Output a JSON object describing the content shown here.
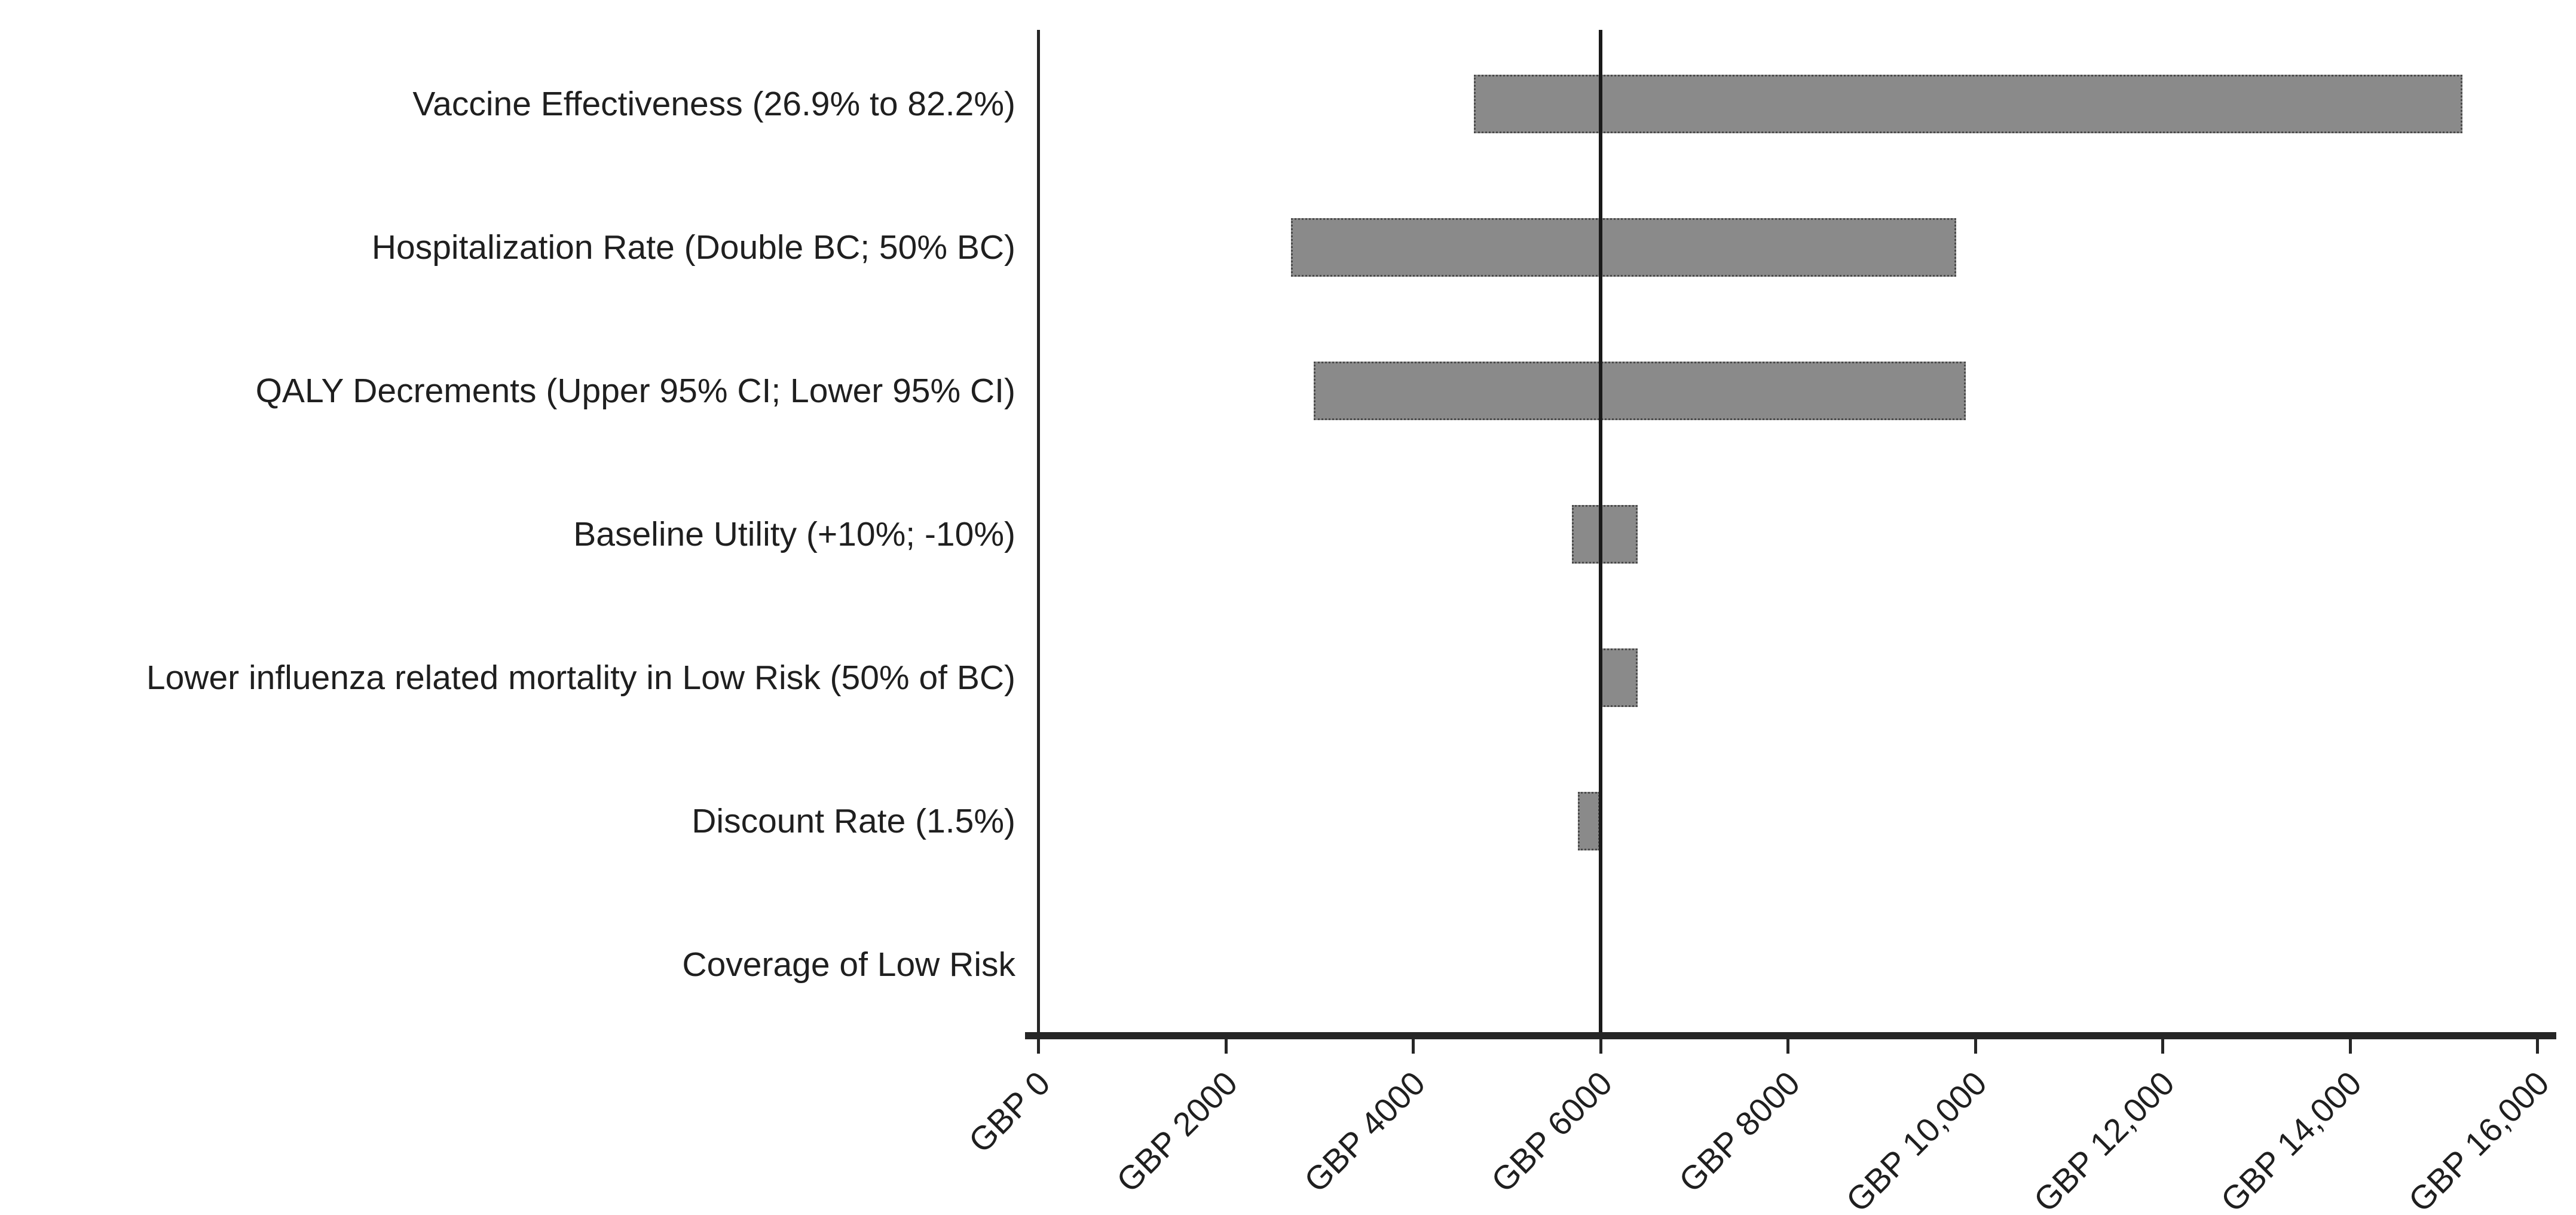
{
  "chart_data": {
    "type": "bar",
    "subtype": "tornado-sensitivity",
    "orientation": "horizontal",
    "title": "",
    "categories": [
      "Vaccine Effectiveness (26.9% to 82.2%)",
      "Hospitalization Rate (Double BC; 50% BC)",
      "QALY Decrements (Upper 95% CI; Lower 95% CI)",
      "Baseline Utility (+10%; -10%)",
      "Lower influenza related mortality in Low Risk (50% of BC)",
      "Discount Rate (1.5%)",
      "Coverage of Low Risk"
    ],
    "series": [
      {
        "name": "low_estimate_gbp",
        "values": [
          4650,
          2700,
          2940,
          5700,
          6000,
          5760,
          6000
        ]
      },
      {
        "name": "high_estimate_gbp",
        "values": [
          15200,
          9800,
          9900,
          6400,
          6400,
          6000,
          6000
        ]
      }
    ],
    "baseline_value": 6000,
    "x_axis": {
      "min": 0,
      "max": 16000,
      "tick_values": [
        0,
        2000,
        4000,
        6000,
        8000,
        10000,
        12000,
        14000,
        16000
      ],
      "tick_labels": [
        "GBP 0",
        "GBP 2000",
        "GBP 4000",
        "GBP 6000",
        "GBP 8000",
        "GBP 10,000",
        "GBP 12,000",
        "GBP 14,000",
        "GBP 16,000"
      ],
      "tick_rotation_deg": -45
    },
    "grid": false,
    "legend": false,
    "colors": {
      "bar_fill": "#8a8a8a",
      "bar_border": "#4a4a4a",
      "axis": "#262626",
      "baseline": "#1a1a1a",
      "text": "#1f1f1f",
      "background": "#ffffff"
    }
  }
}
